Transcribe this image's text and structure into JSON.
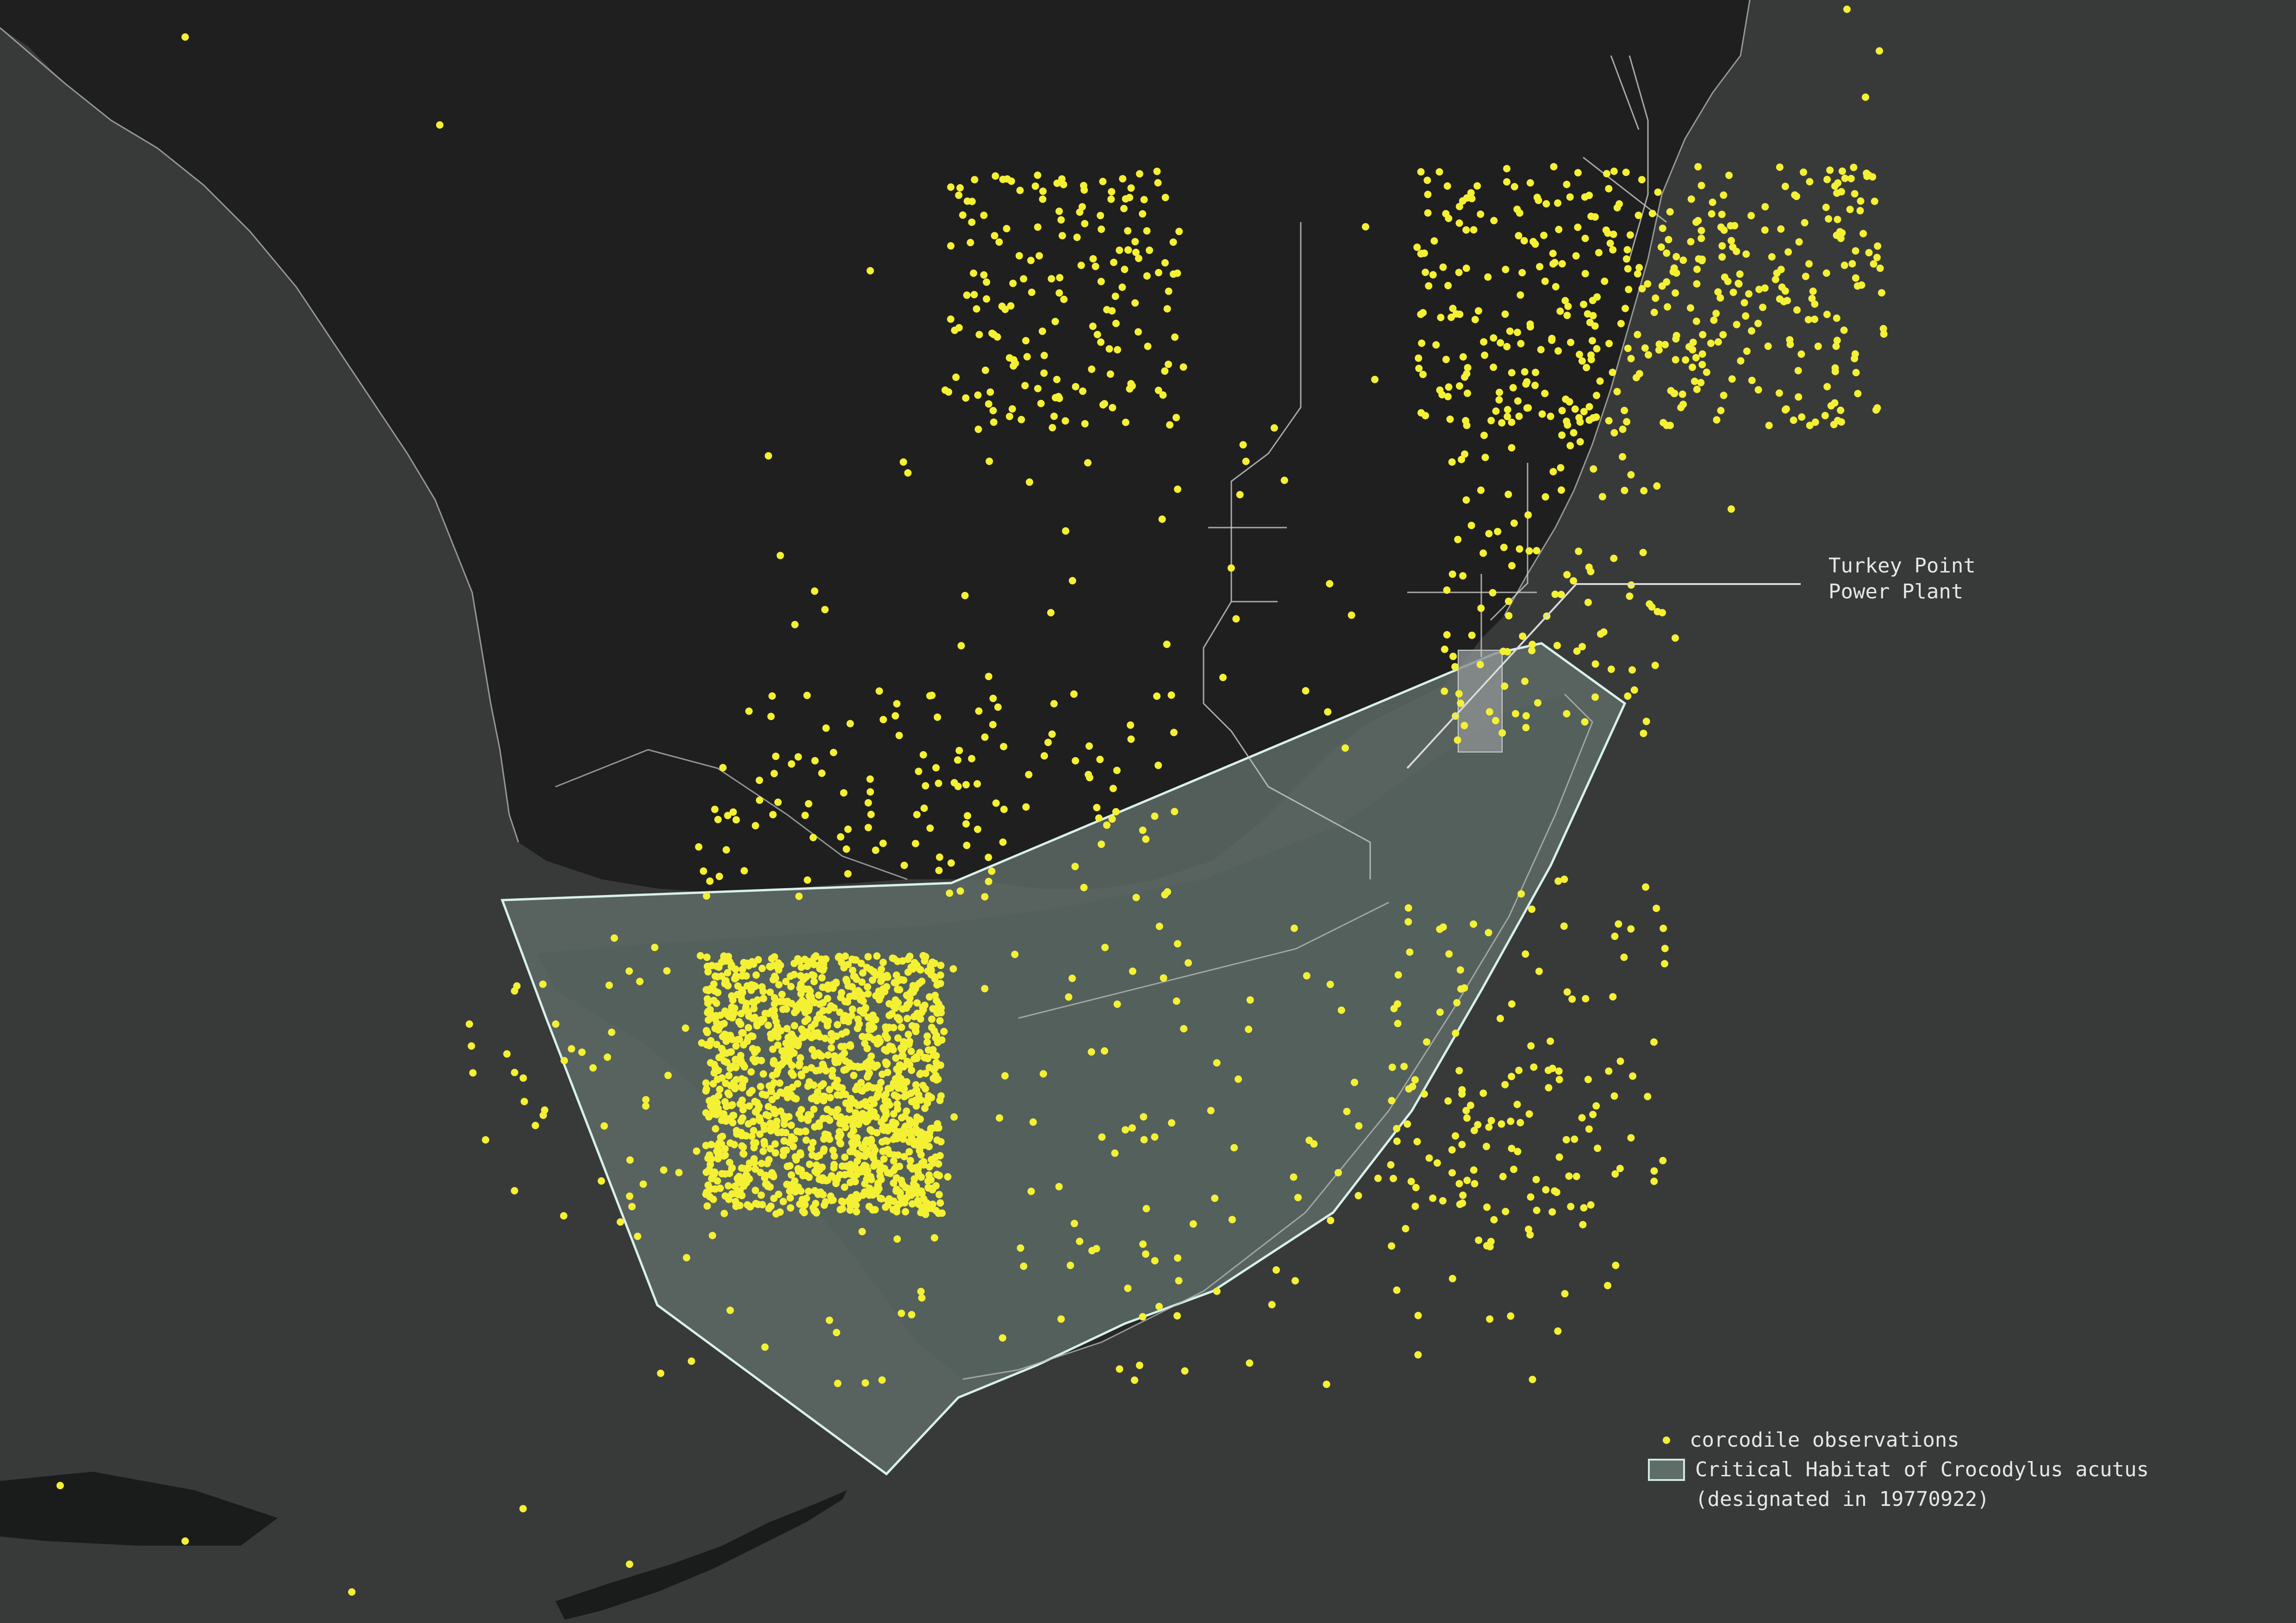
{
  "map": {
    "colors": {
      "background_water": "#383a3a",
      "land": "#1f1f1f",
      "habitat_fill": "#5f6d68",
      "habitat_stroke": "#d8f0ea",
      "coast_line": "#b9bcbc",
      "observation_dot": "#f4f034",
      "annotation_line": "#d9d9d9"
    }
  },
  "annotation": {
    "line1": "Turkey Point",
    "line2": "Power Plant"
  },
  "legend": {
    "observations_label": "corcodile observations",
    "habitat_label_line1": "Critical Habitat of Crocodylus acutus",
    "habitat_label_line2": "(designated in 19770922)"
  }
}
